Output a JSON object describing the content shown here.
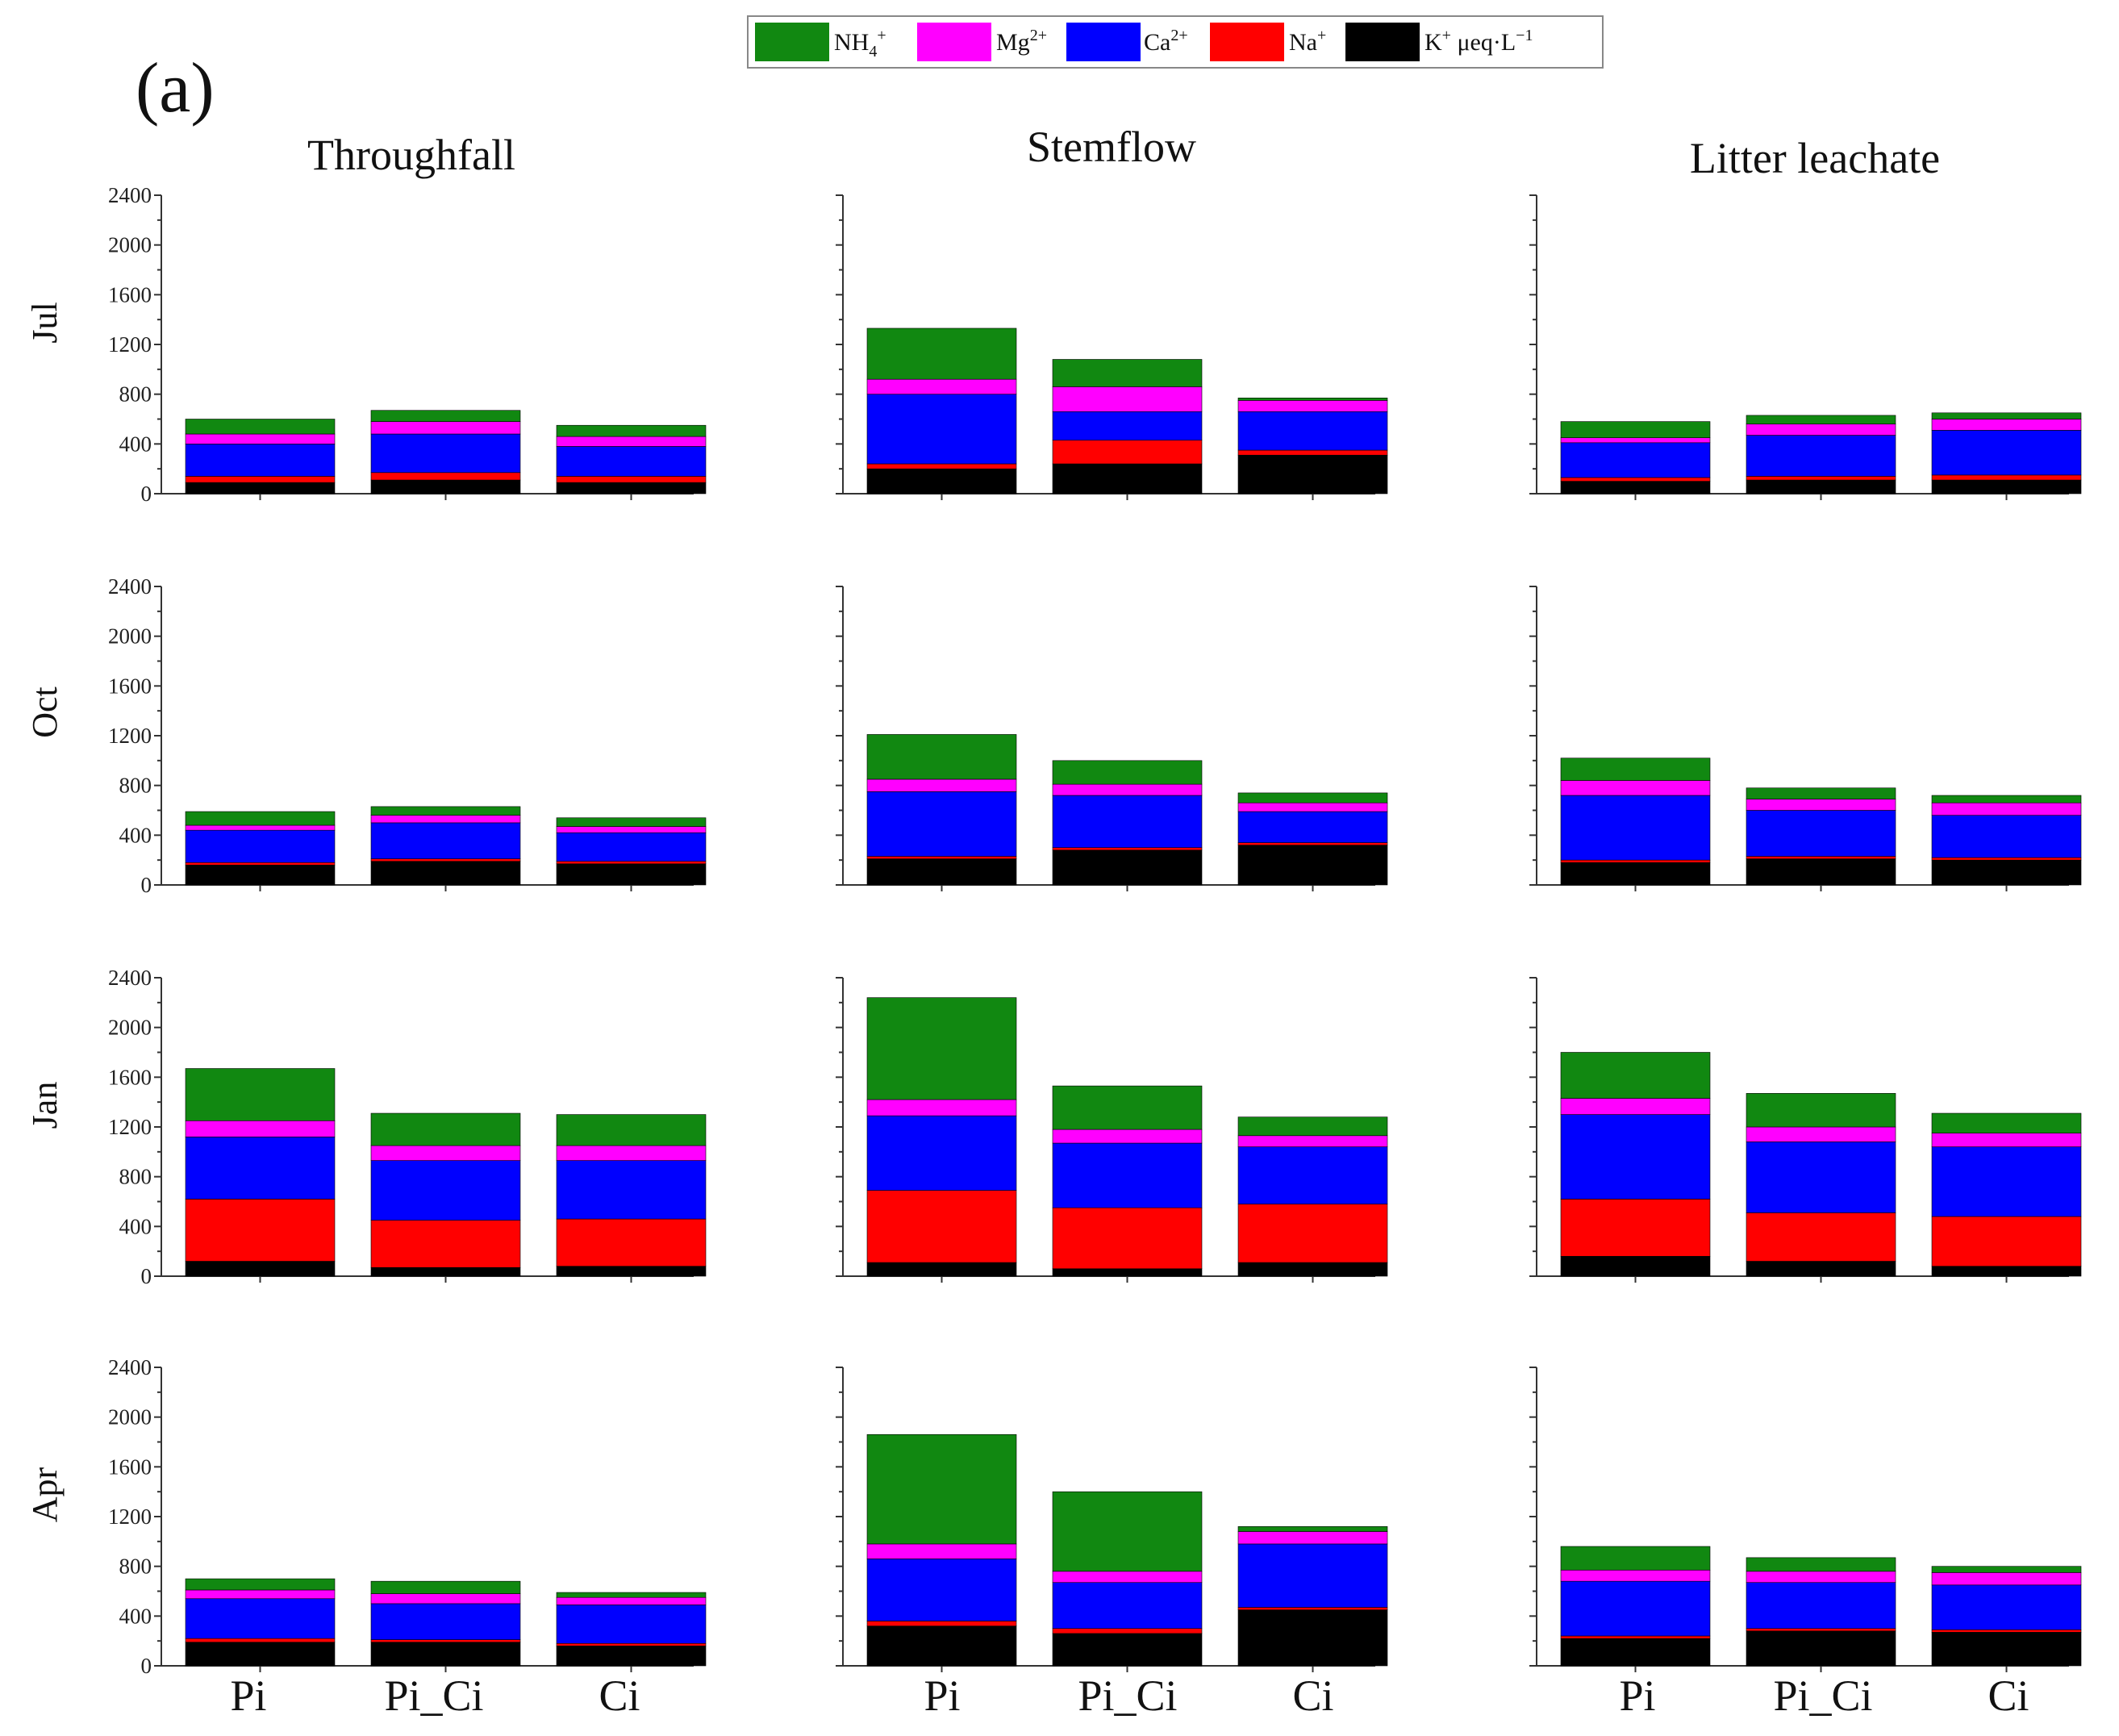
{
  "panel_label": "(a)",
  "legend": [
    {
      "label": "NH4+",
      "color": "#118811"
    },
    {
      "label": "Mg2+",
      "color": "#ff00ff"
    },
    {
      "label": "Ca2+",
      "color": "#0000ff"
    },
    {
      "label": "Na+",
      "color": "#ff0000"
    },
    {
      "label": "K+ μeq·L−1",
      "color": "#000000"
    }
  ],
  "chart_data": {
    "type": "bar",
    "stacked": true,
    "stack_order_bottom_to_top": [
      "K+",
      "Na+",
      "Ca2+",
      "Mg2+",
      "NH4+"
    ],
    "units": "μeq·L−1",
    "ylim": [
      0,
      2400
    ],
    "yticks": [
      0,
      400,
      800,
      1200,
      1600,
      2000,
      2400
    ],
    "categories": [
      "Pi",
      "Pi_Ci",
      "Ci"
    ],
    "columns": [
      "Throughfall",
      "Stemflow",
      "Litter leachate"
    ],
    "rows": [
      "Jul",
      "Oct",
      "Jan",
      "Apr"
    ],
    "panels": [
      {
        "row": "Jul",
        "col": "Throughfall",
        "bars": [
          {
            "category": "Pi",
            "K": 90,
            "Na": 50,
            "Ca": 260,
            "Mg": 80,
            "NH4": 120
          },
          {
            "category": "Pi_Ci",
            "K": 110,
            "Na": 60,
            "Ca": 310,
            "Mg": 100,
            "NH4": 90
          },
          {
            "category": "Ci",
            "K": 90,
            "Na": 50,
            "Ca": 240,
            "Mg": 80,
            "NH4": 90
          }
        ]
      },
      {
        "row": "Jul",
        "col": "Stemflow",
        "bars": [
          {
            "category": "Pi",
            "K": 200,
            "Na": 40,
            "Ca": 560,
            "Mg": 120,
            "NH4": 410
          },
          {
            "category": "Pi_Ci",
            "K": 240,
            "Na": 190,
            "Ca": 230,
            "Mg": 200,
            "NH4": 220
          },
          {
            "category": "Ci",
            "K": 310,
            "Na": 40,
            "Ca": 310,
            "Mg": 90,
            "NH4": 20
          }
        ]
      },
      {
        "row": "Jul",
        "col": "Litter leachate",
        "bars": [
          {
            "category": "Pi",
            "K": 100,
            "Na": 30,
            "Ca": 280,
            "Mg": 40,
            "NH4": 130
          },
          {
            "category": "Pi_Ci",
            "K": 110,
            "Na": 30,
            "Ca": 330,
            "Mg": 90,
            "NH4": 70
          },
          {
            "category": "Ci",
            "K": 110,
            "Na": 40,
            "Ca": 360,
            "Mg": 90,
            "NH4": 50
          }
        ]
      },
      {
        "row": "Oct",
        "col": "Throughfall",
        "bars": [
          {
            "category": "Pi",
            "K": 160,
            "Na": 20,
            "Ca": 260,
            "Mg": 40,
            "NH4": 110
          },
          {
            "category": "Pi_Ci",
            "K": 190,
            "Na": 20,
            "Ca": 290,
            "Mg": 60,
            "NH4": 70
          },
          {
            "category": "Ci",
            "K": 170,
            "Na": 20,
            "Ca": 230,
            "Mg": 50,
            "NH4": 70
          }
        ]
      },
      {
        "row": "Oct",
        "col": "Stemflow",
        "bars": [
          {
            "category": "Pi",
            "K": 210,
            "Na": 20,
            "Ca": 520,
            "Mg": 100,
            "NH4": 360
          },
          {
            "category": "Pi_Ci",
            "K": 280,
            "Na": 20,
            "Ca": 420,
            "Mg": 90,
            "NH4": 190
          },
          {
            "category": "Ci",
            "K": 320,
            "Na": 20,
            "Ca": 250,
            "Mg": 70,
            "NH4": 80
          }
        ]
      },
      {
        "row": "Oct",
        "col": "Litter leachate",
        "bars": [
          {
            "category": "Pi",
            "K": 180,
            "Na": 20,
            "Ca": 520,
            "Mg": 120,
            "NH4": 180
          },
          {
            "category": "Pi_Ci",
            "K": 210,
            "Na": 20,
            "Ca": 370,
            "Mg": 90,
            "NH4": 90
          },
          {
            "category": "Ci",
            "K": 200,
            "Na": 20,
            "Ca": 340,
            "Mg": 100,
            "NH4": 60
          }
        ]
      },
      {
        "row": "Jan",
        "col": "Throughfall",
        "bars": [
          {
            "category": "Pi",
            "K": 120,
            "Na": 500,
            "Ca": 500,
            "Mg": 130,
            "NH4": 420
          },
          {
            "category": "Pi_Ci",
            "K": 70,
            "Na": 380,
            "Ca": 480,
            "Mg": 120,
            "NH4": 260
          },
          {
            "category": "Ci",
            "K": 80,
            "Na": 380,
            "Ca": 470,
            "Mg": 120,
            "NH4": 250
          }
        ]
      },
      {
        "row": "Jan",
        "col": "Stemflow",
        "bars": [
          {
            "category": "Pi",
            "K": 110,
            "Na": 580,
            "Ca": 600,
            "Mg": 130,
            "NH4": 820
          },
          {
            "category": "Pi_Ci",
            "K": 60,
            "Na": 490,
            "Ca": 520,
            "Mg": 110,
            "NH4": 350
          },
          {
            "category": "Ci",
            "K": 110,
            "Na": 470,
            "Ca": 460,
            "Mg": 90,
            "NH4": 150
          }
        ]
      },
      {
        "row": "Jan",
        "col": "Litter leachate",
        "bars": [
          {
            "category": "Pi",
            "K": 160,
            "Na": 460,
            "Ca": 680,
            "Mg": 130,
            "NH4": 370
          },
          {
            "category": "Pi_Ci",
            "K": 120,
            "Na": 390,
            "Ca": 570,
            "Mg": 120,
            "NH4": 270
          },
          {
            "category": "Ci",
            "K": 80,
            "Na": 400,
            "Ca": 560,
            "Mg": 110,
            "NH4": 160
          }
        ]
      },
      {
        "row": "Apr",
        "col": "Throughfall",
        "bars": [
          {
            "category": "Pi",
            "K": 190,
            "Na": 30,
            "Ca": 320,
            "Mg": 70,
            "NH4": 90
          },
          {
            "category": "Pi_Ci",
            "K": 190,
            "Na": 20,
            "Ca": 290,
            "Mg": 80,
            "NH4": 100
          },
          {
            "category": "Ci",
            "K": 160,
            "Na": 20,
            "Ca": 310,
            "Mg": 60,
            "NH4": 40
          }
        ]
      },
      {
        "row": "Apr",
        "col": "Stemflow",
        "bars": [
          {
            "category": "Pi",
            "K": 320,
            "Na": 40,
            "Ca": 500,
            "Mg": 120,
            "NH4": 880
          },
          {
            "category": "Pi_Ci",
            "K": 260,
            "Na": 40,
            "Ca": 370,
            "Mg": 90,
            "NH4": 640
          },
          {
            "category": "Ci",
            "K": 450,
            "Na": 20,
            "Ca": 510,
            "Mg": 100,
            "NH4": 40
          }
        ]
      },
      {
        "row": "Apr",
        "col": "Litter leachate",
        "bars": [
          {
            "category": "Pi",
            "K": 220,
            "Na": 20,
            "Ca": 440,
            "Mg": 90,
            "NH4": 190
          },
          {
            "category": "Pi_Ci",
            "K": 280,
            "Na": 20,
            "Ca": 370,
            "Mg": 90,
            "NH4": 110
          },
          {
            "category": "Ci",
            "K": 270,
            "Na": 20,
            "Ca": 360,
            "Mg": 100,
            "NH4": 50
          }
        ]
      }
    ]
  }
}
